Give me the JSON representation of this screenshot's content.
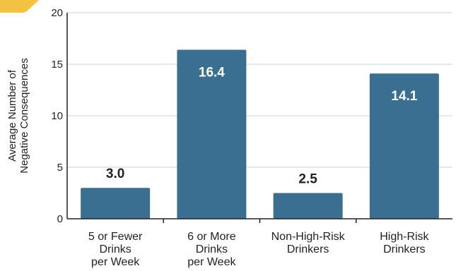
{
  "chart_data": {
    "type": "bar",
    "categories": [
      [
        "5 or Fewer",
        "Drinks",
        "per Week"
      ],
      [
        "6 or More",
        "Drinks",
        "per Week"
      ],
      [
        "Non-High-Risk",
        "Drinkers"
      ],
      [
        "High-Risk",
        "Drinkers"
      ]
    ],
    "values": [
      3.0,
      16.4,
      2.5,
      14.1
    ],
    "value_labels": [
      "3.0",
      "16.4",
      "2.5",
      "14.1"
    ],
    "ylabel": [
      "Average Number of",
      "Negative Consequences"
    ],
    "xlabel": "",
    "ylim": [
      0,
      20
    ],
    "yticks": [
      0,
      5,
      10,
      15,
      20
    ],
    "grid": true,
    "colors": {
      "bar": "#3b6f91",
      "grid": "#c5d3df",
      "axis": "#222222",
      "label_inside": "#ffffff",
      "label_outside": "#222222",
      "corner_tab": "#f4c242"
    }
  }
}
